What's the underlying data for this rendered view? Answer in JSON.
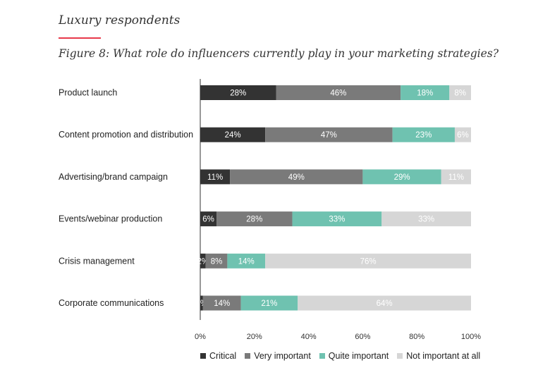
{
  "header": {
    "section_title": "Luxury respondents",
    "accent_color": "#e8394a"
  },
  "chart_data": {
    "type": "bar",
    "orientation": "horizontal",
    "stacked": true,
    "title": "Figure 8: What role do influencers currently play in your marketing strategies?",
    "xlabel": "",
    "ylabel": "",
    "xlim": [
      0,
      100
    ],
    "x_ticks": [
      "0%",
      "20%",
      "40%",
      "60%",
      "80%",
      "100%"
    ],
    "categories": [
      "Product launch",
      "Content promotion and distribution",
      "Advertising/brand campaign",
      "Events/webinar production",
      "Crisis management",
      "Corporate communications"
    ],
    "series": [
      {
        "name": "Critical",
        "color": "#333333",
        "label_color": "#ffffff",
        "values": [
          28,
          24,
          11,
          6,
          2,
          1
        ]
      },
      {
        "name": "Very important",
        "color": "#7a7a7a",
        "label_color": "#ffffff",
        "values": [
          46,
          47,
          49,
          28,
          8,
          14
        ]
      },
      {
        "name": "Quite important",
        "color": "#6fc2b0",
        "label_color": "#ffffff",
        "values": [
          18,
          23,
          29,
          33,
          14,
          21
        ]
      },
      {
        "name": "Not important at all",
        "color": "#d6d6d6",
        "label_color": "#ffffff",
        "values": [
          8,
          6,
          11,
          33,
          76,
          64
        ]
      }
    ],
    "legend_position": "bottom"
  }
}
